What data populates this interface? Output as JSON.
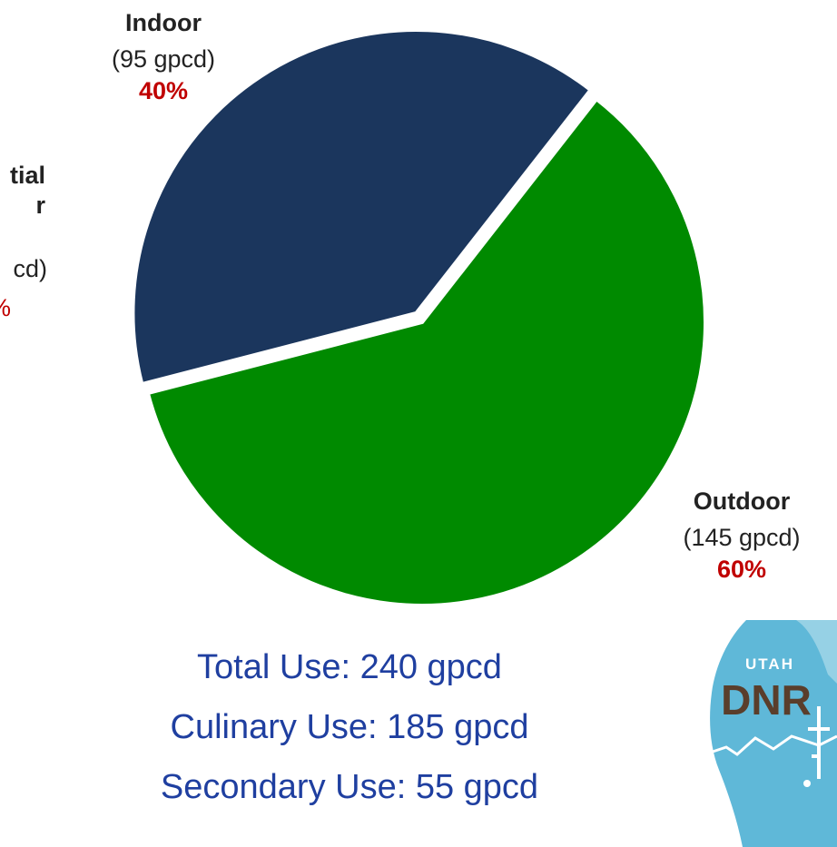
{
  "chart_data": {
    "type": "pie",
    "slices": [
      {
        "name": "Indoor",
        "detail": "(95 gpcd)",
        "percent_label": "40%",
        "value": 95,
        "color": "#1b365d"
      },
      {
        "name": "Outdoor",
        "detail": "(145 gpcd)",
        "percent_label": "60%",
        "value": 145,
        "color": "#008a00"
      }
    ],
    "cut_off_label": {
      "lines": [
        "tial",
        "r",
        "cd)",
        "%"
      ]
    }
  },
  "summary": {
    "total": "Total Use: 240 gpcd",
    "culinary": "Culinary Use: 185 gpcd",
    "secondary": "Secondary Use: 55 gpcd"
  },
  "logo": {
    "top_text": "UTAH",
    "main_text": "DNR"
  },
  "colors": {
    "percent": "#c00000",
    "summary_text": "#1f3fa0",
    "logo_blue": "#5fb8d8",
    "logo_brown": "#5a3e2b"
  }
}
